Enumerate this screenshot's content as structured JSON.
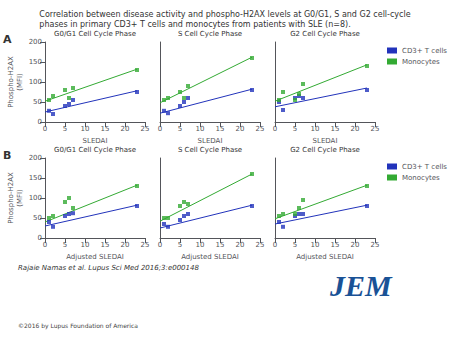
{
  "title": "Correlation between disease activity and phospho-H2AX levels at G0/G1, S and G2 cell-cycle\nphases in primary CD3+ T cells and monocytes from patients with SLE (n=8).",
  "annotations": [
    {
      "text": "A"
    },
    {
      "text": "B"
    },
    {
      "text": "Rajaie Namas et al. Lupus Sci Med 2016;3:e000148"
    },
    {
      "text": "©2016 by Lupus Foundation of America",
      "color": "#444444"
    },
    {
      "text": "JEM",
      "color": "#1a5296"
    }
  ],
  "chart_data": [
    {
      "type": "scatter",
      "title": "G0/G1 Cell Cycle Phase",
      "xlabel": "SLEDAI",
      "ylabel": "Phospho-H2AX\n(MFI)",
      "xlim": [
        0,
        25
      ],
      "xticks": [
        0,
        5,
        10,
        15,
        20,
        25
      ],
      "ylim": [
        0,
        200
      ],
      "yticks": [
        0,
        50,
        100,
        150,
        200
      ],
      "grid": false,
      "legend": false,
      "series": [
        {
          "name": "CD3+ T cells",
          "type": "line",
          "color": "#2233bb",
          "x": [
            0,
            23
          ],
          "values": [
            25,
            78
          ]
        },
        {
          "name": "Monocytes",
          "type": "line",
          "color": "#33aa33",
          "x": [
            0,
            23
          ],
          "values": [
            52,
            132
          ]
        },
        {
          "name": "CD3+ T cells",
          "type": "scatter",
          "marker": "square",
          "color": "#2233bb",
          "x": [
            1,
            2,
            5,
            6,
            7,
            23
          ],
          "values": [
            28,
            20,
            40,
            45,
            55,
            75
          ]
        },
        {
          "name": "Monocytes",
          "type": "scatter",
          "marker": "square",
          "color": "#33aa33",
          "x": [
            1,
            2,
            5,
            6,
            7,
            23
          ],
          "values": [
            55,
            65,
            80,
            60,
            85,
            130
          ]
        }
      ]
    },
    {
      "type": "scatter",
      "title": "S Cell Cycle Phase",
      "xlabel": "SLEDAI",
      "xlim": [
        0,
        25
      ],
      "xticks": [
        0,
        5,
        10,
        15,
        20,
        25
      ],
      "ylim": [
        0,
        200
      ],
      "yticks": [
        0,
        50,
        100,
        150,
        200
      ],
      "grid": false,
      "legend": false,
      "tick_labels": "x",
      "series": [
        {
          "name": "CD3+ T cells",
          "type": "line",
          "color": "#2233bb",
          "x": [
            0,
            23
          ],
          "values": [
            22,
            82
          ]
        },
        {
          "name": "Monocytes",
          "type": "line",
          "color": "#33aa33",
          "x": [
            0,
            23
          ],
          "values": [
            48,
            162
          ]
        },
        {
          "name": "CD3+ T cells",
          "type": "scatter",
          "marker": "square",
          "color": "#2233bb",
          "x": [
            1,
            2,
            5,
            6,
            7,
            23
          ],
          "values": [
            28,
            22,
            40,
            50,
            60,
            80
          ]
        },
        {
          "name": "Monocytes",
          "type": "scatter",
          "marker": "square",
          "color": "#33aa33",
          "x": [
            1,
            2,
            5,
            6,
            7,
            23
          ],
          "values": [
            55,
            60,
            75,
            60,
            90,
            160
          ]
        }
      ]
    },
    {
      "type": "scatter",
      "title": "G2 Cell Cycle Phase",
      "xlabel": "SLEDAI",
      "xlim": [
        0,
        25
      ],
      "xticks": [
        0,
        5,
        10,
        15,
        20,
        25
      ],
      "ylim": [
        0,
        200
      ],
      "yticks": [
        0,
        50,
        100,
        150,
        200
      ],
      "grid": false,
      "legend": "right",
      "tick_labels": "x",
      "series": [
        {
          "name": "CD3+ T cells",
          "type": "line",
          "color": "#2233bb",
          "x": [
            0,
            23
          ],
          "values": [
            38,
            85
          ]
        },
        {
          "name": "Monocytes",
          "type": "line",
          "color": "#33aa33",
          "x": [
            0,
            23
          ],
          "values": [
            52,
            143
          ]
        },
        {
          "name": "CD3+ T cells",
          "type": "scatter",
          "marker": "square",
          "color": "#2233bb",
          "x": [
            1,
            2,
            5,
            6,
            7,
            23
          ],
          "values": [
            50,
            30,
            60,
            65,
            60,
            80
          ]
        },
        {
          "name": "Monocytes",
          "type": "scatter",
          "marker": "square",
          "color": "#33aa33",
          "x": [
            1,
            2,
            5,
            6,
            7,
            23
          ],
          "values": [
            55,
            75,
            55,
            70,
            95,
            140
          ]
        }
      ]
    },
    {
      "type": "scatter",
      "title": "G0/G1 Cell Cycle Phase",
      "xlabel": "Adjusted SLEDAI",
      "ylabel": "Phospho-H2AX\n(MFI)",
      "xlim": [
        0,
        25
      ],
      "xticks": [
        0,
        5,
        10,
        15,
        20,
        25
      ],
      "ylim": [
        0,
        200
      ],
      "yticks": [
        0,
        50,
        100,
        150,
        200
      ],
      "grid": false,
      "legend": false,
      "series": [
        {
          "name": "CD3+ T cells",
          "type": "line",
          "color": "#2233bb",
          "x": [
            0,
            23
          ],
          "values": [
            30,
            82
          ]
        },
        {
          "name": "Monocytes",
          "type": "line",
          "color": "#33aa33",
          "x": [
            0,
            23
          ],
          "values": [
            40,
            132
          ]
        },
        {
          "name": "CD3+ T cells",
          "type": "scatter",
          "marker": "square",
          "color": "#2233bb",
          "x": [
            1,
            2,
            5,
            6,
            7,
            23
          ],
          "values": [
            40,
            28,
            55,
            60,
            62,
            80
          ]
        },
        {
          "name": "Monocytes",
          "type": "scatter",
          "marker": "square",
          "color": "#33aa33",
          "x": [
            1,
            2,
            5,
            6,
            7,
            23
          ],
          "values": [
            50,
            55,
            90,
            100,
            75,
            130
          ]
        }
      ]
    },
    {
      "type": "scatter",
      "title": "S Cell Cycle Phase",
      "xlabel": "Adjusted SLEDAI",
      "xlim": [
        0,
        25
      ],
      "xticks": [
        0,
        5,
        10,
        15,
        20,
        25
      ],
      "ylim": [
        0,
        200
      ],
      "yticks": [
        0,
        50,
        100,
        150,
        200
      ],
      "grid": false,
      "legend": false,
      "tick_labels": "x",
      "series": [
        {
          "name": "CD3+ T cells",
          "type": "line",
          "color": "#2233bb",
          "x": [
            0,
            23
          ],
          "values": [
            25,
            82
          ]
        },
        {
          "name": "Monocytes",
          "type": "line",
          "color": "#33aa33",
          "x": [
            0,
            23
          ],
          "values": [
            42,
            160
          ]
        },
        {
          "name": "CD3+ T cells",
          "type": "scatter",
          "marker": "square",
          "color": "#2233bb",
          "x": [
            1,
            2,
            5,
            6,
            7,
            23
          ],
          "values": [
            35,
            28,
            45,
            55,
            60,
            80
          ]
        },
        {
          "name": "Monocytes",
          "type": "scatter",
          "marker": "square",
          "color": "#33aa33",
          "x": [
            1,
            2,
            5,
            6,
            7,
            23
          ],
          "values": [
            50,
            50,
            80,
            90,
            85,
            160
          ]
        }
      ]
    },
    {
      "type": "scatter",
      "title": "G2 Cell Cycle Phase",
      "xlabel": "Adjusted SLEDAI",
      "xlim": [
        0,
        25
      ],
      "xticks": [
        0,
        5,
        10,
        15,
        20,
        25
      ],
      "ylim": [
        0,
        200
      ],
      "yticks": [
        0,
        50,
        100,
        150,
        200
      ],
      "grid": false,
      "legend": "right",
      "tick_labels": "x",
      "series": [
        {
          "name": "CD3+ T cells",
          "type": "line",
          "color": "#2233bb",
          "x": [
            0,
            23
          ],
          "values": [
            35,
            82
          ]
        },
        {
          "name": "Monocytes",
          "type": "line",
          "color": "#33aa33",
          "x": [
            0,
            23
          ],
          "values": [
            48,
            132
          ]
        },
        {
          "name": "CD3+ T cells",
          "type": "scatter",
          "marker": "square",
          "color": "#2233bb",
          "x": [
            1,
            2,
            5,
            6,
            7,
            23
          ],
          "values": [
            40,
            28,
            55,
            60,
            60,
            80
          ]
        },
        {
          "name": "Monocytes",
          "type": "scatter",
          "marker": "square",
          "color": "#33aa33",
          "x": [
            1,
            2,
            5,
            6,
            7,
            23
          ],
          "values": [
            55,
            60,
            60,
            75,
            95,
            130
          ]
        }
      ]
    }
  ]
}
